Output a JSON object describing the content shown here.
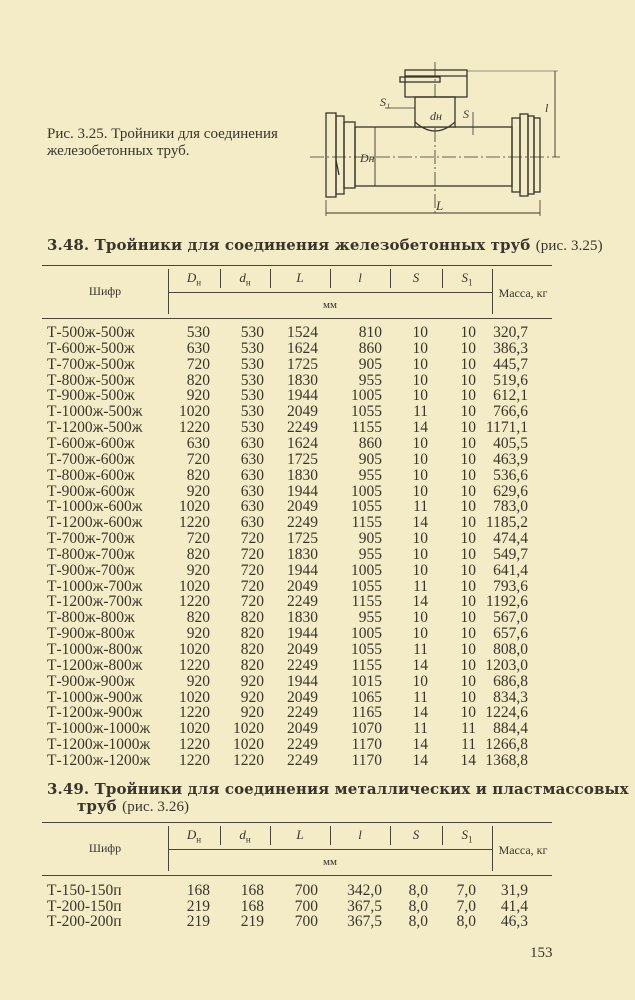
{
  "figure": {
    "caption": "Рис. 3.25. Тройники для соединения железобетонных труб.",
    "labels": {
      "S1": "S₁",
      "dn": "dн",
      "S": "S",
      "l": "l",
      "Dn": "Dн",
      "L": "L"
    }
  },
  "table1": {
    "number": "3.48.",
    "title": "Тройники для соединения железобетонных труб",
    "ref": "(рис. 3.25)",
    "header": {
      "code": "Шифр",
      "cols": [
        {
          "sym": "D",
          "sub": "н"
        },
        {
          "sym": "d",
          "sub": "н"
        },
        {
          "sym": "L",
          "sub": ""
        },
        {
          "sym": "l",
          "sub": ""
        },
        {
          "sym": "S",
          "sub": ""
        },
        {
          "sym": "S",
          "sub": "1"
        }
      ],
      "unit": "мм",
      "mass": "Масса, кг"
    },
    "rows": [
      [
        "Т-500ж-500ж",
        "530",
        "530",
        "1524",
        "810",
        "10",
        "10",
        "320,7"
      ],
      [
        "Т-600ж-500ж",
        "630",
        "530",
        "1624",
        "860",
        "10",
        "10",
        "386,3"
      ],
      [
        "Т-700ж-500ж",
        "720",
        "530",
        "1725",
        "905",
        "10",
        "10",
        "445,7"
      ],
      [
        "Т-800ж-500ж",
        "820",
        "530",
        "1830",
        "955",
        "10",
        "10",
        "519,6"
      ],
      [
        "Т-900ж-500ж",
        "920",
        "530",
        "1944",
        "1005",
        "10",
        "10",
        "612,1"
      ],
      [
        "Т-1000ж-500ж",
        "1020",
        "530",
        "2049",
        "1055",
        "11",
        "10",
        "766,6"
      ],
      [
        "Т-1200ж-500ж",
        "1220",
        "530",
        "2249",
        "1155",
        "14",
        "10",
        "1171,1"
      ],
      [
        "Т-600ж-600ж",
        "630",
        "630",
        "1624",
        "860",
        "10",
        "10",
        "405,5"
      ],
      [
        "Т-700ж-600ж",
        "720",
        "630",
        "1725",
        "905",
        "10",
        "10",
        "463,9"
      ],
      [
        "Т-800ж-600ж",
        "820",
        "630",
        "1830",
        "955",
        "10",
        "10",
        "536,6"
      ],
      [
        "Т-900ж-600ж",
        "920",
        "630",
        "1944",
        "1005",
        "10",
        "10",
        "629,6"
      ],
      [
        "Т-1000ж-600ж",
        "1020",
        "630",
        "2049",
        "1055",
        "11",
        "10",
        "783,0"
      ],
      [
        "Т-1200ж-600ж",
        "1220",
        "630",
        "2249",
        "1155",
        "14",
        "10",
        "1185,2"
      ],
      [
        "Т-700ж-700ж",
        "720",
        "720",
        "1725",
        "905",
        "10",
        "10",
        "474,4"
      ],
      [
        "Т-800ж-700ж",
        "820",
        "720",
        "1830",
        "955",
        "10",
        "10",
        "549,7"
      ],
      [
        "Т-900ж-700ж",
        "920",
        "720",
        "1944",
        "1005",
        "10",
        "10",
        "641,4"
      ],
      [
        "Т-1000ж-700ж",
        "1020",
        "720",
        "2049",
        "1055",
        "11",
        "10",
        "793,6"
      ],
      [
        "Т-1200ж-700ж",
        "1220",
        "720",
        "2249",
        "1155",
        "14",
        "10",
        "1192,6"
      ],
      [
        "Т-800ж-800ж",
        "820",
        "820",
        "1830",
        "955",
        "10",
        "10",
        "567,0"
      ],
      [
        "Т-900ж-800ж",
        "920",
        "820",
        "1944",
        "1005",
        "10",
        "10",
        "657,6"
      ],
      [
        "Т-1000ж-800ж",
        "1020",
        "820",
        "2049",
        "1055",
        "11",
        "10",
        "808,0"
      ],
      [
        "Т-1200ж-800ж",
        "1220",
        "820",
        "2249",
        "1155",
        "14",
        "10",
        "1203,0"
      ],
      [
        "Т-900ж-900ж",
        "920",
        "920",
        "1944",
        "1015",
        "10",
        "10",
        "686,8"
      ],
      [
        "Т-1000ж-900ж",
        "1020",
        "920",
        "2049",
        "1065",
        "11",
        "10",
        "834,3"
      ],
      [
        "Т-1200ж-900ж",
        "1220",
        "920",
        "2249",
        "1165",
        "14",
        "10",
        "1224,6"
      ],
      [
        "Т-1000ж-1000ж",
        "1020",
        "1020",
        "2049",
        "1070",
        "11",
        "11",
        "884,4"
      ],
      [
        "Т-1200ж-1000ж",
        "1220",
        "1020",
        "2249",
        "1170",
        "14",
        "11",
        "1266,8"
      ],
      [
        "Т-1200ж-1200ж",
        "1220",
        "1220",
        "2249",
        "1170",
        "14",
        "14",
        "1368,8"
      ]
    ]
  },
  "table2": {
    "number": "3.49.",
    "title_line1": "Тройники для соединения металлических и пластмассовых",
    "title_line2": "труб",
    "ref": "(рис. 3.26)",
    "header": {
      "code": "Шифр",
      "cols": [
        {
          "sym": "D",
          "sub": "н"
        },
        {
          "sym": "d",
          "sub": "н"
        },
        {
          "sym": "L",
          "sub": ""
        },
        {
          "sym": "l",
          "sub": ""
        },
        {
          "sym": "S",
          "sub": ""
        },
        {
          "sym": "S",
          "sub": "1"
        }
      ],
      "unit": "мм",
      "mass": "Масса, кг"
    },
    "rows": [
      [
        "Т-150-150п",
        "168",
        "168",
        "700",
        "342,0",
        "8,0",
        "7,0",
        "31,9"
      ],
      [
        "Т-200-150п",
        "219",
        "168",
        "700",
        "367,5",
        "8,0",
        "7,0",
        "41,4"
      ],
      [
        "Т-200-200п",
        "219",
        "219",
        "700",
        "367,5",
        "8,0",
        "8,0",
        "46,3"
      ]
    ]
  },
  "page_number": "153"
}
